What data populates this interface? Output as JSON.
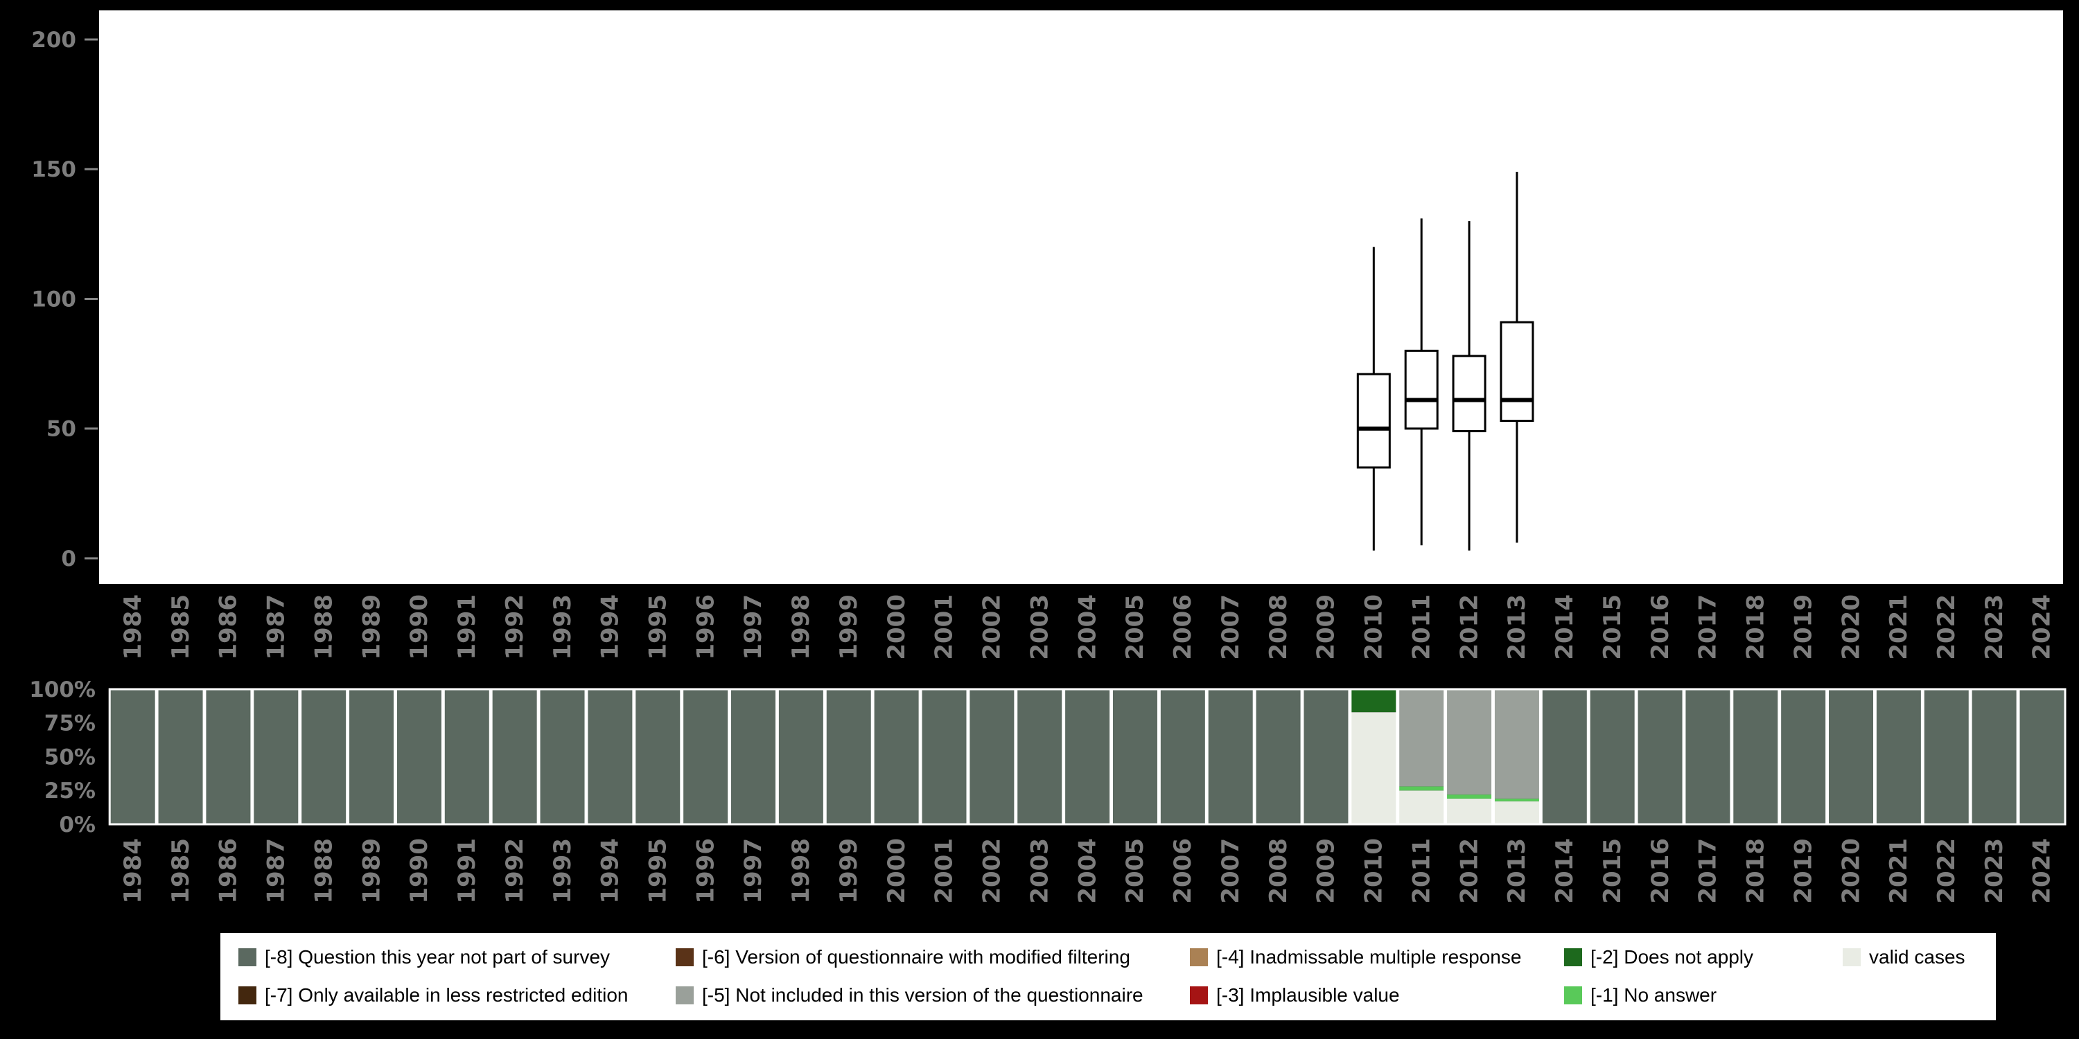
{
  "colors": {
    "-8": "#5b6960",
    "-7": "#43270e",
    "-6": "#5a3318",
    "-5": "#9aa09a",
    "-4": "#aa8154",
    "-3": "#a51414",
    "-2": "#1d691d",
    "-1": "#59c959",
    "valid": "#e9ece4",
    "axis_text": "#7d7d7d",
    "tick": "#888888",
    "panel_bg": "#ffffff",
    "box_stroke": "#000000",
    "bar_outline": "#ffffff",
    "page_bg": "#000000",
    "legend_bg": "#ffffff",
    "legend_text": "#000000"
  },
  "chart_data": [
    {
      "type": "boxplot",
      "title": "",
      "xlabel": "",
      "ylabel": "",
      "ylim": [
        0,
        210
      ],
      "yticks": [
        0,
        50,
        100,
        150,
        200
      ],
      "categories": [
        1984,
        1985,
        1986,
        1987,
        1988,
        1989,
        1990,
        1991,
        1992,
        1993,
        1994,
        1995,
        1996,
        1997,
        1998,
        1999,
        2000,
        2001,
        2002,
        2003,
        2004,
        2005,
        2006,
        2007,
        2008,
        2009,
        2010,
        2011,
        2012,
        2013,
        2014,
        2015,
        2016,
        2017,
        2018,
        2019,
        2020,
        2021,
        2022,
        2023,
        2024
      ],
      "boxes": [
        {
          "year": 2010,
          "min": 3,
          "q1": 35,
          "median": 50,
          "q3": 71,
          "max": 120
        },
        {
          "year": 2011,
          "min": 5,
          "q1": 50,
          "median": 61,
          "q3": 80,
          "max": 131
        },
        {
          "year": 2012,
          "min": 3,
          "q1": 49,
          "median": 61,
          "q3": 78,
          "max": 130
        },
        {
          "year": 2013,
          "min": 6,
          "q1": 53,
          "median": 61,
          "q3": 91,
          "max": 149
        }
      ]
    },
    {
      "type": "bar",
      "stacked_percent": true,
      "title": "",
      "xlabel": "",
      "ylabel": "",
      "yticks": [
        0,
        25,
        50,
        75,
        100
      ],
      "categories": [
        1984,
        1985,
        1986,
        1987,
        1988,
        1989,
        1990,
        1991,
        1992,
        1993,
        1994,
        1995,
        1996,
        1997,
        1998,
        1999,
        2000,
        2001,
        2002,
        2003,
        2004,
        2005,
        2006,
        2007,
        2008,
        2009,
        2010,
        2011,
        2012,
        2013,
        2014,
        2015,
        2016,
        2017,
        2018,
        2019,
        2020,
        2021,
        2022,
        2023,
        2024
      ],
      "default_segments": [
        {
          "key": "-8",
          "pct": 100
        }
      ],
      "overrides": {
        "2010": [
          {
            "key": "valid",
            "pct": 83
          },
          {
            "key": "-2",
            "pct": 17
          }
        ],
        "2011": [
          {
            "key": "valid",
            "pct": 25
          },
          {
            "key": "-1",
            "pct": 3
          },
          {
            "key": "-5",
            "pct": 72
          }
        ],
        "2012": [
          {
            "key": "valid",
            "pct": 19
          },
          {
            "key": "-1",
            "pct": 3
          },
          {
            "key": "-5",
            "pct": 78
          }
        ],
        "2013": [
          {
            "key": "valid",
            "pct": 17
          },
          {
            "key": "-1",
            "pct": 2
          },
          {
            "key": "-5",
            "pct": 81
          }
        ]
      }
    }
  ],
  "legend": {
    "items": [
      {
        "color_key": "-8",
        "label": "[-8] Question this year not part of survey"
      },
      {
        "color_key": "-7",
        "label": "[-7] Only available in less restricted edition"
      },
      {
        "color_key": "-6",
        "label": "[-6] Version of questionnaire with modified filtering"
      },
      {
        "color_key": "-5",
        "label": "[-5] Not included in this version of the questionnaire"
      },
      {
        "color_key": "-4",
        "label": "[-4] Inadmissable multiple response"
      },
      {
        "color_key": "-3",
        "label": "[-3] Implausible value"
      },
      {
        "color_key": "-2",
        "label": "[-2] Does not apply"
      },
      {
        "color_key": "-1",
        "label": "[-1] No answer"
      },
      {
        "color_key": "valid",
        "label": "valid cases"
      }
    ]
  }
}
